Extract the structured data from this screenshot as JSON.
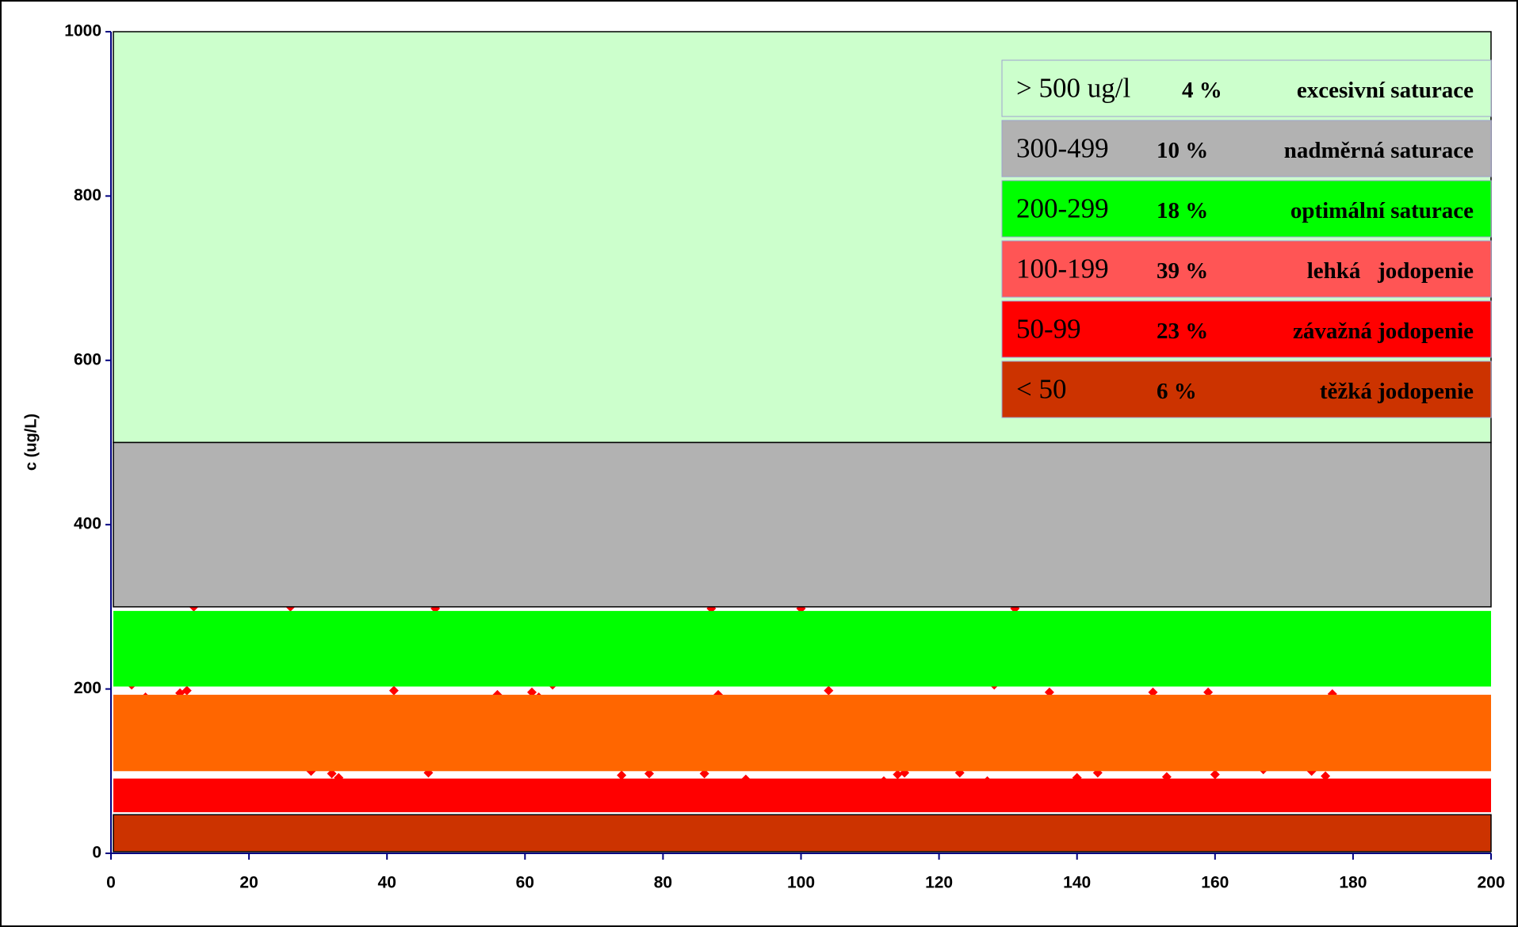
{
  "chart_data": {
    "type": "bands",
    "y_label": "c (ug/L)",
    "xlim": [
      0,
      200
    ],
    "xticks": [
      0,
      20,
      40,
      60,
      80,
      100,
      120,
      140,
      160,
      180,
      200
    ],
    "ylim": [
      0,
      1000
    ],
    "yticks": [
      0,
      200,
      400,
      600,
      800,
      1000
    ],
    "legend": "upper right",
    "series": [
      {
        "name": "> 500 ug/l",
        "value": 4,
        "value_label": "4 %",
        "description": "excesivní saturace",
        "range": [
          500,
          1000
        ],
        "color": "#ccffcc",
        "legend_color": "#ccffcc",
        "outline": true
      },
      {
        "name": "300-499",
        "value": 10,
        "value_label": "10 %",
        "description": "nadměrná saturace",
        "range": [
          300,
          500
        ],
        "color": "#b2b2b2",
        "legend_color": "#b2b2b2",
        "outline": true
      },
      {
        "name": "200-299",
        "value": 18,
        "value_label": "18 %",
        "description": "optimální saturace",
        "range": [
          203,
          295
        ],
        "color": "#00ff00",
        "legend_color": "#00ff00",
        "outline": false
      },
      {
        "name": "100-199",
        "value": 39,
        "value_label": "39 %",
        "description": "lehká   jodopenie",
        "range": [
          100,
          193
        ],
        "color": "#ff6600",
        "legend_color": "#ff5555",
        "outline": false
      },
      {
        "name": "50-99",
        "value": 23,
        "value_label": "23 %",
        "description": "závažná jodopenie",
        "range": [
          50,
          91
        ],
        "color": "#ff0000",
        "legend_color": "#ff0000",
        "outline": false
      },
      {
        "name": "< 50",
        "value": 6,
        "value_label": "6 %",
        "description": "těžká jodopenie",
        "range": [
          2,
          47
        ],
        "color": "#cc3300",
        "legend_color": "#cc3300",
        "outline": true
      }
    ],
    "points": {
      "color": "#ff0000",
      "x": [
        3,
        5,
        10,
        11,
        12,
        26,
        29,
        32,
        33,
        41,
        46,
        47,
        56,
        61,
        62,
        64,
        74,
        78,
        86,
        87,
        88,
        92,
        100,
        104,
        112,
        114,
        115,
        123,
        127,
        128,
        131,
        136,
        140,
        143,
        151,
        153,
        159,
        160,
        167,
        174,
        176,
        177
      ],
      "values": [
        205,
        190,
        195,
        198,
        300,
        300,
        100,
        97,
        92,
        198,
        98,
        298,
        193,
        196,
        190,
        205,
        95,
        97,
        97,
        298,
        193,
        90,
        298,
        198,
        88,
        96,
        98,
        98,
        88,
        205,
        298,
        196,
        92,
        98,
        196,
        93,
        196,
        96,
        102,
        100,
        94,
        194
      ]
    }
  }
}
